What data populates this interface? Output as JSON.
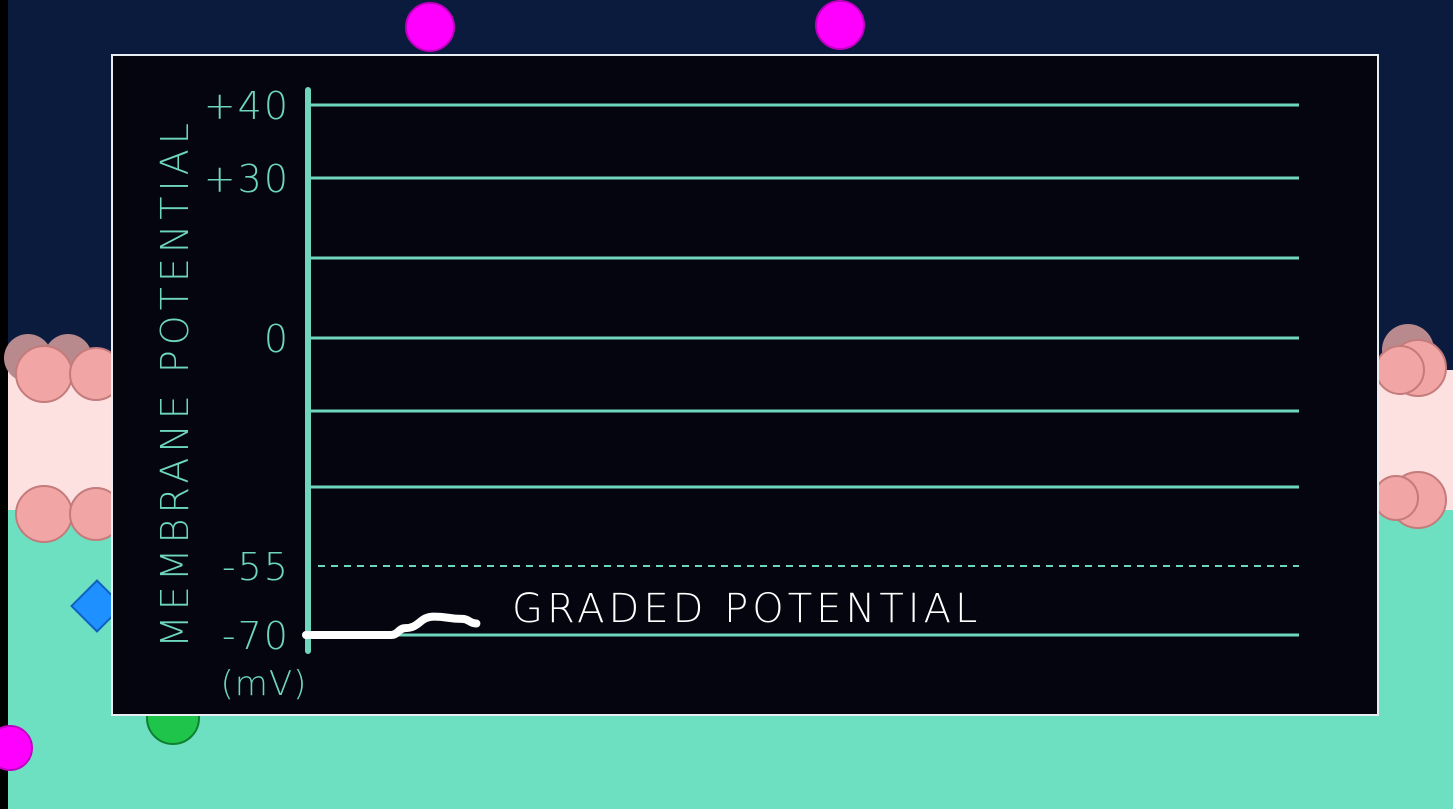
{
  "colors": {
    "background_top": "#0b1b3e",
    "background_bottom": "#6de0c2",
    "membrane_band": "#fde0e0",
    "lipid_head": "#f1a5a5",
    "ion_magenta": "#ff00ff",
    "ion_blue": "#1e90ff",
    "ion_green": "#1fc44a",
    "panel": "#05050f",
    "grid": "#6ed6bf",
    "trace": "#ffffff"
  },
  "chart_data": {
    "type": "line",
    "ylabel": "MEMBRANE POTENTIAL",
    "yunit": "(mV)",
    "ylim": [
      -70,
      40
    ],
    "ytick_labels": [
      "+40",
      "+30",
      "0",
      "-55",
      "-70"
    ],
    "ytick_values": [
      40,
      30,
      0,
      -55,
      -70
    ],
    "threshold_value": -55,
    "annotation": "GRADED POTENTIAL",
    "series": [
      {
        "x": [
          0,
          12,
          14,
          18,
          22,
          24
        ],
        "y": [
          -70,
          -70,
          -68.5,
          -66,
          -66.5,
          -67.5
        ]
      }
    ]
  },
  "decorations": {
    "icons": [
      "ion-magenta-icon",
      "ion-magenta-icon",
      "ion-magenta-icon",
      "ion-blue-icon",
      "ion-green-icon",
      "lipid-bilayer-icon"
    ]
  }
}
